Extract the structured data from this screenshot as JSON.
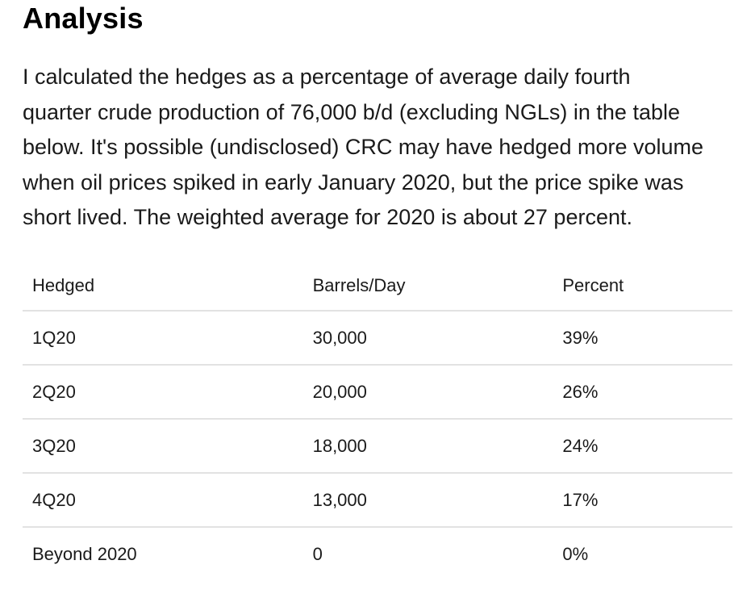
{
  "page": {
    "title": "Analysis"
  },
  "intro": {
    "text": "I calculated the hedges as a percentage of average daily fourth quarter crude production of 76,000 b/d (excluding NGLs) in the table below. It's possible (undisclosed) CRC may have hedged more volume when oil prices spiked in early January 2020, but the price spike was short lived. The weighted average for 2020 is about 27 percent.",
    "lines": [
      "I calculated the hedges as a percentage of average daily fourth",
      "quarter crude production of 76,000 b/d (excluding NGLs) in the table",
      "below. It's possible (undisclosed) CRC may have hedged more volume",
      "when oil prices spiked in early January 2020, but the price spike was",
      "short lived. The weighted average for 2020 is about 27 percent."
    ]
  },
  "table": {
    "columns": [
      "Hedged",
      "Barrels/Day",
      "Percent"
    ],
    "rows": [
      {
        "hedged": "1Q20",
        "barrels_day": "30,000",
        "percent": "39%"
      },
      {
        "hedged": "2Q20",
        "barrels_day": "20,000",
        "percent": "26%"
      },
      {
        "hedged": "3Q20",
        "barrels_day": "18,000",
        "percent": "24%"
      },
      {
        "hedged": "4Q20",
        "barrels_day": "13,000",
        "percent": "17%"
      },
      {
        "hedged": "Beyond 2020",
        "barrels_day": "0",
        "percent": "0%"
      }
    ]
  },
  "colors": {
    "background": "#ffffff",
    "heading_text": "#000000",
    "body_text": "#1a1a1a",
    "table_divider": "#e2e2e2"
  }
}
